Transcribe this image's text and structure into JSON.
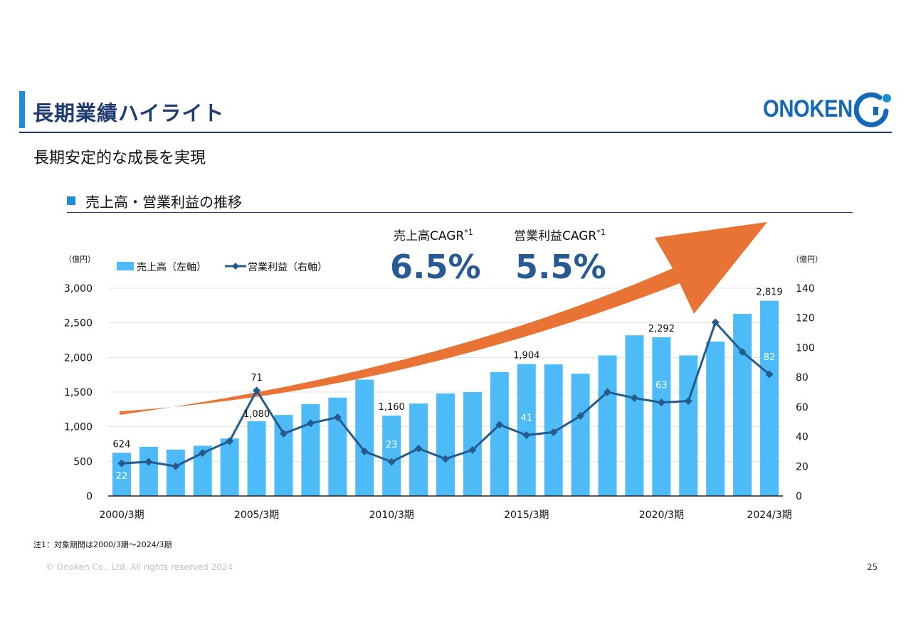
{
  "header": {
    "title": "長期業績ハイライト",
    "logo_text": "ONOKEN"
  },
  "subtitle": "長期安定的な成長を実現",
  "section": {
    "title": "売上高・営業利益の推移"
  },
  "cagr": [
    {
      "label": "売上高CAGR",
      "sup": "*1",
      "value": "6.5%"
    },
    {
      "label": "営業利益CAGR",
      "sup": "*1",
      "value": "5.5%"
    }
  ],
  "note": "注1：対象期間は2000/3期～2024/3期",
  "footer": {
    "copyright": "© Onoken Co., Ltd. All rights reserved 2024",
    "page_number": "25"
  },
  "colors": {
    "brand_navy": "#1f3b73",
    "accent_blue": "#1b8ed6",
    "bar": "#4dbbf7",
    "line": "#245a8c",
    "arrow": "#e87334",
    "cagr_value": "#265a94"
  },
  "chart_data": {
    "type": "bar",
    "left_axis_unit": "（億円）",
    "right_axis_unit": "（億円）",
    "x_tick_labels": [
      "2000/3期",
      "2005/3期",
      "2010/3期",
      "2015/3期",
      "2020/3期",
      "2024/3期"
    ],
    "x_tick_indices": [
      0,
      5,
      10,
      15,
      20,
      24
    ],
    "ylim_left": [
      0,
      3000
    ],
    "yticks_left": [
      "0",
      "500",
      "1,000",
      "1,500",
      "2,000",
      "2,500",
      "3,000"
    ],
    "ylim_right": [
      0,
      140
    ],
    "yticks_right": [
      "0",
      "20",
      "40",
      "60",
      "80",
      "100",
      "120",
      "140"
    ],
    "grid": true,
    "legend": [
      "売上高（左軸）",
      "営業利益（右軸）"
    ],
    "series": [
      {
        "name": "売上高（左軸）",
        "type": "bar",
        "axis": "left",
        "values": [
          624,
          710,
          670,
          725,
          830,
          1080,
          1170,
          1325,
          1420,
          1680,
          1160,
          1335,
          1480,
          1500,
          1790,
          1904,
          1900,
          1765,
          2030,
          2320,
          2292,
          2030,
          2230,
          2630,
          2819
        ],
        "labels": [
          {
            "index": 0,
            "text": "624"
          },
          {
            "index": 5,
            "text": "1,080"
          },
          {
            "index": 10,
            "text": "1,160"
          },
          {
            "index": 15,
            "text": "1,904"
          },
          {
            "index": 20,
            "text": "2,292"
          },
          {
            "index": 24,
            "text": "2,819"
          }
        ]
      },
      {
        "name": "営業利益（右軸）",
        "type": "line",
        "axis": "right",
        "values": [
          22,
          23,
          20,
          29,
          37,
          71,
          42,
          49,
          53,
          30,
          23,
          32,
          25,
          31,
          48,
          41,
          43,
          54,
          70,
          66,
          63,
          64,
          117,
          97,
          82
        ],
        "labels": [
          {
            "index": 0,
            "text": "22"
          },
          {
            "index": 5,
            "text": "71"
          },
          {
            "index": 10,
            "text": "23"
          },
          {
            "index": 15,
            "text": "41"
          },
          {
            "index": 20,
            "text": "63"
          },
          {
            "index": 24,
            "text": "82"
          }
        ]
      }
    ]
  }
}
